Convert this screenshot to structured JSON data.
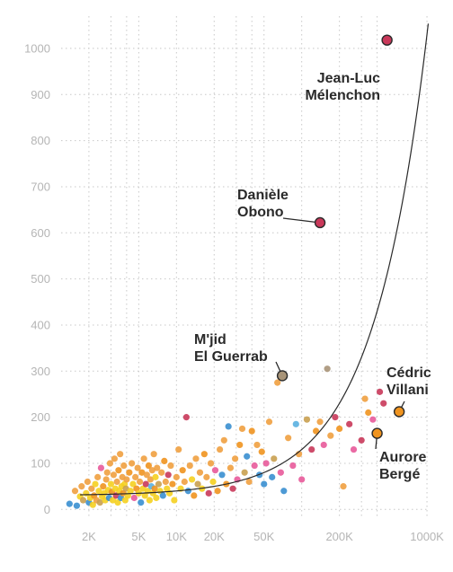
{
  "chart_data": {
    "type": "scatter",
    "x_scale": "log",
    "x_ticks": [
      {
        "value": 2000,
        "label": "2K"
      },
      {
        "value": 5000,
        "label": "5K"
      },
      {
        "value": 10000,
        "label": "10K"
      },
      {
        "value": 20000,
        "label": "20K"
      },
      {
        "value": 50000,
        "label": "50K"
      },
      {
        "value": 200000,
        "label": "200K"
      },
      {
        "value": 1000000,
        "label": "1000K"
      }
    ],
    "x_minor_gridlines": [
      3000,
      4000,
      30000,
      40000,
      100000,
      300000,
      400000
    ],
    "y_ticks": [
      0,
      100,
      200,
      300,
      400,
      500,
      600,
      700,
      800,
      900,
      1000
    ],
    "xlim": [
      1200,
      1050000
    ],
    "ylim": [
      -15,
      1070
    ],
    "grid": true,
    "trend_curve": {
      "type": "exponential",
      "intercept": 30,
      "slope_per_unit_x": 0.001
    },
    "annotated": [
      {
        "name": "Jean-Luc Mélenchon",
        "lines": [
          "Jean-Luc",
          "Mélenchon"
        ],
        "x": 480000,
        "y": 1018,
        "color": "#c9385a"
      },
      {
        "name": "Danièle Obono",
        "lines": [
          "Danièle",
          "Obono"
        ],
        "x": 140000,
        "y": 622,
        "color": "#c9385a"
      },
      {
        "name": "M'jid El Guerrab",
        "lines": [
          "M'jid",
          "El Guerrab"
        ],
        "x": 70000,
        "y": 290,
        "color": "#a89478"
      },
      {
        "name": "Cédric Villani",
        "lines": [
          "Cédric",
          "Villani"
        ],
        "x": 600000,
        "y": 212,
        "color": "#f0941f"
      },
      {
        "name": "Aurore Bergé",
        "lines": [
          "Aurore",
          "Bergé"
        ],
        "x": 400000,
        "y": 165,
        "color": "#f0941f"
      }
    ],
    "points": [
      {
        "x": 1400,
        "y": 12,
        "c": "#3a8fd0"
      },
      {
        "x": 1550,
        "y": 40,
        "c": "#f0a040"
      },
      {
        "x": 1600,
        "y": 8,
        "c": "#3a8fd0"
      },
      {
        "x": 1700,
        "y": 28,
        "c": "#f5d020"
      },
      {
        "x": 1750,
        "y": 50,
        "c": "#f0a040"
      },
      {
        "x": 1800,
        "y": 20,
        "c": "#c9a050"
      },
      {
        "x": 1900,
        "y": 35,
        "c": "#f5d020"
      },
      {
        "x": 1950,
        "y": 60,
        "c": "#f0a040"
      },
      {
        "x": 2000,
        "y": 15,
        "c": "#3a8fd0"
      },
      {
        "x": 2050,
        "y": 25,
        "c": "#f5d020"
      },
      {
        "x": 2100,
        "y": 45,
        "c": "#f0a040"
      },
      {
        "x": 2150,
        "y": 10,
        "c": "#f5d020"
      },
      {
        "x": 2200,
        "y": 30,
        "c": "#f0941f"
      },
      {
        "x": 2250,
        "y": 55,
        "c": "#f5d020"
      },
      {
        "x": 2300,
        "y": 20,
        "c": "#f0a040"
      },
      {
        "x": 2350,
        "y": 70,
        "c": "#f0a040"
      },
      {
        "x": 2400,
        "y": 40,
        "c": "#f5d020"
      },
      {
        "x": 2450,
        "y": 15,
        "c": "#c9a050"
      },
      {
        "x": 2500,
        "y": 90,
        "c": "#e85a9a"
      },
      {
        "x": 2550,
        "y": 28,
        "c": "#f5d020"
      },
      {
        "x": 2600,
        "y": 50,
        "c": "#f0941f"
      },
      {
        "x": 2650,
        "y": 35,
        "c": "#f5d020"
      },
      {
        "x": 2700,
        "y": 20,
        "c": "#f5d020"
      },
      {
        "x": 2750,
        "y": 65,
        "c": "#f0a040"
      },
      {
        "x": 2800,
        "y": 80,
        "c": "#f0a040"
      },
      {
        "x": 2850,
        "y": 42,
        "c": "#f5d020"
      },
      {
        "x": 2900,
        "y": 25,
        "c": "#3a8fd0"
      },
      {
        "x": 2950,
        "y": 100,
        "c": "#f0a040"
      },
      {
        "x": 3000,
        "y": 55,
        "c": "#f5d020"
      },
      {
        "x": 3050,
        "y": 38,
        "c": "#f0941f"
      },
      {
        "x": 3100,
        "y": 20,
        "c": "#f5d020"
      },
      {
        "x": 3150,
        "y": 75,
        "c": "#f0a040"
      },
      {
        "x": 3200,
        "y": 110,
        "c": "#f0a040"
      },
      {
        "x": 3250,
        "y": 45,
        "c": "#f5d020"
      },
      {
        "x": 3300,
        "y": 30,
        "c": "#c9385a"
      },
      {
        "x": 3350,
        "y": 60,
        "c": "#f0a040"
      },
      {
        "x": 3400,
        "y": 15,
        "c": "#f5d020"
      },
      {
        "x": 3450,
        "y": 85,
        "c": "#f0941f"
      },
      {
        "x": 3500,
        "y": 40,
        "c": "#f5d020"
      },
      {
        "x": 3550,
        "y": 120,
        "c": "#f0a040"
      },
      {
        "x": 3600,
        "y": 25,
        "c": "#3a8fd0"
      },
      {
        "x": 3650,
        "y": 50,
        "c": "#f5d020"
      },
      {
        "x": 3700,
        "y": 70,
        "c": "#f0a040"
      },
      {
        "x": 3750,
        "y": 35,
        "c": "#f0941f"
      },
      {
        "x": 3800,
        "y": 95,
        "c": "#f0a040"
      },
      {
        "x": 3850,
        "y": 55,
        "c": "#f5d020"
      },
      {
        "x": 3900,
        "y": 20,
        "c": "#f5d020"
      },
      {
        "x": 3950,
        "y": 45,
        "c": "#c9a050"
      },
      {
        "x": 4000,
        "y": 65,
        "c": "#f0a040"
      },
      {
        "x": 4100,
        "y": 30,
        "c": "#f5d020"
      },
      {
        "x": 4200,
        "y": 80,
        "c": "#f0941f"
      },
      {
        "x": 4300,
        "y": 40,
        "c": "#f5d020"
      },
      {
        "x": 4400,
        "y": 100,
        "c": "#f0a040"
      },
      {
        "x": 4500,
        "y": 55,
        "c": "#f5d020"
      },
      {
        "x": 4600,
        "y": 25,
        "c": "#e85a9a"
      },
      {
        "x": 4700,
        "y": 70,
        "c": "#f0a040"
      },
      {
        "x": 4800,
        "y": 45,
        "c": "#f0941f"
      },
      {
        "x": 4900,
        "y": 90,
        "c": "#f0a040"
      },
      {
        "x": 5000,
        "y": 35,
        "c": "#f5d020"
      },
      {
        "x": 5100,
        "y": 60,
        "c": "#f0a040"
      },
      {
        "x": 5200,
        "y": 15,
        "c": "#3a8fd0"
      },
      {
        "x": 5300,
        "y": 80,
        "c": "#f0941f"
      },
      {
        "x": 5400,
        "y": 45,
        "c": "#f5d020"
      },
      {
        "x": 5500,
        "y": 110,
        "c": "#f0a040"
      },
      {
        "x": 5600,
        "y": 30,
        "c": "#f5d020"
      },
      {
        "x": 5700,
        "y": 55,
        "c": "#c9385a"
      },
      {
        "x": 5800,
        "y": 75,
        "c": "#f0a040"
      },
      {
        "x": 5900,
        "y": 40,
        "c": "#f5d020"
      },
      {
        "x": 6000,
        "y": 95,
        "c": "#f0941f"
      },
      {
        "x": 6100,
        "y": 20,
        "c": "#f5d020"
      },
      {
        "x": 6200,
        "y": 65,
        "c": "#f0a040"
      },
      {
        "x": 6300,
        "y": 50,
        "c": "#5ab0e0"
      },
      {
        "x": 6400,
        "y": 85,
        "c": "#f0a040"
      },
      {
        "x": 6500,
        "y": 35,
        "c": "#f5d020"
      },
      {
        "x": 6600,
        "y": 120,
        "c": "#f0a040"
      },
      {
        "x": 6700,
        "y": 45,
        "c": "#f0941f"
      },
      {
        "x": 6800,
        "y": 70,
        "c": "#f5d020"
      },
      {
        "x": 6900,
        "y": 25,
        "c": "#f5d020"
      },
      {
        "x": 7000,
        "y": 90,
        "c": "#f0a040"
      },
      {
        "x": 7200,
        "y": 55,
        "c": "#c9a050"
      },
      {
        "x": 7400,
        "y": 40,
        "c": "#f5d020"
      },
      {
        "x": 7600,
        "y": 80,
        "c": "#f0a040"
      },
      {
        "x": 7800,
        "y": 30,
        "c": "#3a8fd0"
      },
      {
        "x": 8000,
        "y": 105,
        "c": "#f0941f"
      },
      {
        "x": 8200,
        "y": 60,
        "c": "#f0a040"
      },
      {
        "x": 8400,
        "y": 45,
        "c": "#f5d020"
      },
      {
        "x": 8600,
        "y": 75,
        "c": "#c9385a"
      },
      {
        "x": 8800,
        "y": 35,
        "c": "#f5d020"
      },
      {
        "x": 9000,
        "y": 95,
        "c": "#f0a040"
      },
      {
        "x": 9300,
        "y": 55,
        "c": "#f0941f"
      },
      {
        "x": 9600,
        "y": 20,
        "c": "#f5d020"
      },
      {
        "x": 10000,
        "y": 70,
        "c": "#f0a040"
      },
      {
        "x": 10400,
        "y": 130,
        "c": "#f0a040"
      },
      {
        "x": 10800,
        "y": 45,
        "c": "#f5d020"
      },
      {
        "x": 11200,
        "y": 85,
        "c": "#f0941f"
      },
      {
        "x": 11600,
        "y": 60,
        "c": "#f0a040"
      },
      {
        "x": 12000,
        "y": 200,
        "c": "#c9385a"
      },
      {
        "x": 12400,
        "y": 40,
        "c": "#3a8fd0"
      },
      {
        "x": 12800,
        "y": 95,
        "c": "#f0a040"
      },
      {
        "x": 13300,
        "y": 65,
        "c": "#f5d020"
      },
      {
        "x": 13800,
        "y": 30,
        "c": "#f0941f"
      },
      {
        "x": 14300,
        "y": 110,
        "c": "#f0a040"
      },
      {
        "x": 14800,
        "y": 55,
        "c": "#c9a050"
      },
      {
        "x": 15400,
        "y": 80,
        "c": "#f0a040"
      },
      {
        "x": 16000,
        "y": 45,
        "c": "#f5d020"
      },
      {
        "x": 16700,
        "y": 120,
        "c": "#f0941f"
      },
      {
        "x": 17400,
        "y": 70,
        "c": "#f0a040"
      },
      {
        "x": 18100,
        "y": 35,
        "c": "#c9385a"
      },
      {
        "x": 18800,
        "y": 100,
        "c": "#f0a040"
      },
      {
        "x": 19600,
        "y": 60,
        "c": "#f5d020"
      },
      {
        "x": 20400,
        "y": 85,
        "c": "#e85a9a"
      },
      {
        "x": 21300,
        "y": 40,
        "c": "#f0941f"
      },
      {
        "x": 22200,
        "y": 130,
        "c": "#f0a040"
      },
      {
        "x": 23100,
        "y": 75,
        "c": "#3a8fd0"
      },
      {
        "x": 24000,
        "y": 150,
        "c": "#f0a040"
      },
      {
        "x": 25000,
        "y": 55,
        "c": "#f0941f"
      },
      {
        "x": 26000,
        "y": 180,
        "c": "#3a8fd0"
      },
      {
        "x": 27000,
        "y": 90,
        "c": "#f0a040"
      },
      {
        "x": 28200,
        "y": 45,
        "c": "#c9385a"
      },
      {
        "x": 29400,
        "y": 110,
        "c": "#f0a040"
      },
      {
        "x": 30600,
        "y": 65,
        "c": "#e85a9a"
      },
      {
        "x": 32000,
        "y": 140,
        "c": "#f0941f"
      },
      {
        "x": 33500,
        "y": 175,
        "c": "#f0a040"
      },
      {
        "x": 35000,
        "y": 80,
        "c": "#c9a050"
      },
      {
        "x": 36500,
        "y": 115,
        "c": "#3a8fd0"
      },
      {
        "x": 38000,
        "y": 60,
        "c": "#f0a040"
      },
      {
        "x": 40000,
        "y": 170,
        "c": "#f0941f"
      },
      {
        "x": 42000,
        "y": 95,
        "c": "#e85a9a"
      },
      {
        "x": 44000,
        "y": 140,
        "c": "#f0a040"
      },
      {
        "x": 46000,
        "y": 75,
        "c": "#3a8fd0"
      },
      {
        "x": 48000,
        "y": 125,
        "c": "#f0941f"
      },
      {
        "x": 50000,
        "y": 55,
        "c": "#3a8fd0"
      },
      {
        "x": 52000,
        "y": 100,
        "c": "#e85a9a"
      },
      {
        "x": 55000,
        "y": 190,
        "c": "#f0a040"
      },
      {
        "x": 58000,
        "y": 70,
        "c": "#3a8fd0"
      },
      {
        "x": 60000,
        "y": 110,
        "c": "#c9a050"
      },
      {
        "x": 64000,
        "y": 275,
        "c": "#f0a040"
      },
      {
        "x": 68000,
        "y": 80,
        "c": "#e85a9a"
      },
      {
        "x": 72000,
        "y": 40,
        "c": "#3a8fd0"
      },
      {
        "x": 78000,
        "y": 155,
        "c": "#f0a040"
      },
      {
        "x": 85000,
        "y": 95,
        "c": "#e85a9a"
      },
      {
        "x": 90000,
        "y": 185,
        "c": "#5ab0e0"
      },
      {
        "x": 95000,
        "y": 120,
        "c": "#f0a040"
      },
      {
        "x": 100000,
        "y": 65,
        "c": "#e85a9a"
      },
      {
        "x": 110000,
        "y": 195,
        "c": "#c9a050"
      },
      {
        "x": 120000,
        "y": 130,
        "c": "#c9385a"
      },
      {
        "x": 130000,
        "y": 170,
        "c": "#f0941f"
      },
      {
        "x": 140000,
        "y": 190,
        "c": "#f0a040"
      },
      {
        "x": 150000,
        "y": 140,
        "c": "#e85a9a"
      },
      {
        "x": 160000,
        "y": 305,
        "c": "#a89478"
      },
      {
        "x": 170000,
        "y": 160,
        "c": "#f0a040"
      },
      {
        "x": 185000,
        "y": 200,
        "c": "#c9385a"
      },
      {
        "x": 200000,
        "y": 175,
        "c": "#f0941f"
      },
      {
        "x": 215000,
        "y": 50,
        "c": "#f0a040"
      },
      {
        "x": 240000,
        "y": 185,
        "c": "#c9385a"
      },
      {
        "x": 260000,
        "y": 130,
        "c": "#e85a9a"
      },
      {
        "x": 300000,
        "y": 150,
        "c": "#c9385a"
      },
      {
        "x": 320000,
        "y": 240,
        "c": "#f0a040"
      },
      {
        "x": 340000,
        "y": 210,
        "c": "#f0941f"
      },
      {
        "x": 370000,
        "y": 195,
        "c": "#e85a9a"
      },
      {
        "x": 420000,
        "y": 255,
        "c": "#c9385a"
      },
      {
        "x": 450000,
        "y": 230,
        "c": "#c9385a"
      }
    ]
  }
}
